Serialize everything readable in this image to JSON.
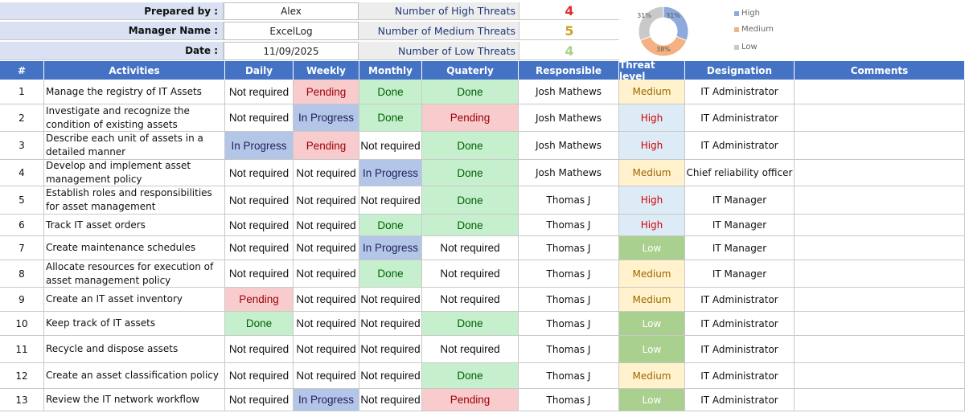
{
  "header": {
    "prepared_by_label": "Prepared by :",
    "prepared_by_value": "Alex",
    "manager_label": "Manager Name :",
    "manager_value": "ExcelLog",
    "date_label": "Date :",
    "date_value": "11/09/2025"
  },
  "threats_summary": {
    "high_label": "Number of High Threats",
    "high_count": "4",
    "medium_label": "Number of Medium Threats",
    "medium_count": "5",
    "low_label": "Number of Low Threats",
    "low_count": "4",
    "colors": {
      "high": "#e03030",
      "medium": "#c9a227",
      "low": "#a9d08e"
    }
  },
  "chart_data": {
    "type": "pie",
    "style": "doughnut",
    "categories": [
      "High",
      "Medium",
      "Low"
    ],
    "values": [
      31,
      38,
      31
    ],
    "value_labels": [
      "31%",
      "38%",
      "31%"
    ],
    "colors": [
      "#8ea9db",
      "#f4b183",
      "#c9c9c9"
    ],
    "legend": [
      "High",
      "Medium",
      "Low"
    ],
    "legend_position": "right"
  },
  "columns": [
    "#",
    "Activities",
    "Daily",
    "Weekly",
    "Monthly",
    "Quaterly",
    "Responsible",
    "Threat level",
    "Designation",
    "Comments"
  ],
  "rows": [
    {
      "num": "1",
      "activity": "Manage the registry of IT Assets",
      "daily": "Not required",
      "weekly": "Pending",
      "monthly": "Done",
      "quarterly": "Done",
      "responsible": "Josh Mathews",
      "threat": "Medium",
      "designation": "IT Administrator",
      "comments": ""
    },
    {
      "num": "2",
      "activity": "Investigate and recognize the condition of existing assets",
      "daily": "Not required",
      "weekly": "In Progress",
      "monthly": "Done",
      "quarterly": "Pending",
      "responsible": "Josh Mathews",
      "threat": "High",
      "designation": "IT Administrator",
      "comments": ""
    },
    {
      "num": "3",
      "activity": "Describe each unit of assets in a detailed manner",
      "daily": "In Progress",
      "weekly": "Pending",
      "monthly": "Not required",
      "quarterly": "Done",
      "responsible": "Josh Mathews",
      "threat": "High",
      "designation": "IT Administrator",
      "comments": ""
    },
    {
      "num": "4",
      "activity": "Develop and implement asset management policy",
      "daily": "Not required",
      "weekly": "Not required",
      "monthly": "In Progress",
      "quarterly": "Done",
      "responsible": "Josh Mathews",
      "threat": "Medium",
      "designation": "Chief reliability officer",
      "comments": ""
    },
    {
      "num": "5",
      "activity": "Establish roles and responsibilities for asset management",
      "daily": "Not required",
      "weekly": "Not required",
      "monthly": "Not required",
      "quarterly": "Done",
      "responsible": "Thomas J",
      "threat": "High",
      "designation": "IT Manager",
      "comments": ""
    },
    {
      "num": "6",
      "activity": "Track IT asset orders",
      "daily": "Not required",
      "weekly": "Not required",
      "monthly": "Done",
      "quarterly": "Done",
      "responsible": "Thomas J",
      "threat": "High",
      "designation": "IT Manager",
      "comments": ""
    },
    {
      "num": "7",
      "activity": "Create maintenance schedules",
      "daily": "Not required",
      "weekly": "Not required",
      "monthly": "In Progress",
      "quarterly": "Not required",
      "responsible": "Thomas J",
      "threat": "Low",
      "designation": "IT Manager",
      "comments": ""
    },
    {
      "num": "8",
      "activity": "Allocate resources for execution of asset management policy",
      "daily": "Not required",
      "weekly": "Not required",
      "monthly": "Done",
      "quarterly": "Not required",
      "responsible": "Thomas J",
      "threat": "Medium",
      "designation": "IT Manager",
      "comments": ""
    },
    {
      "num": "9",
      "activity": "Create an IT asset inventory",
      "daily": "Pending",
      "weekly": "Not required",
      "monthly": "Not required",
      "quarterly": "Not required",
      "responsible": "Thomas J",
      "threat": "Medium",
      "designation": "IT Administrator",
      "comments": ""
    },
    {
      "num": "10",
      "activity": "Keep track of IT assets",
      "daily": "Done",
      "weekly": "Not required",
      "monthly": "Not required",
      "quarterly": "Done",
      "responsible": "Thomas J",
      "threat": "Low",
      "designation": "IT Administrator",
      "comments": ""
    },
    {
      "num": "11",
      "activity": "Recycle and dispose assets",
      "daily": "Not required",
      "weekly": "Not required",
      "monthly": "Not required",
      "quarterly": "Not required",
      "responsible": "Thomas J",
      "threat": "Low",
      "designation": "IT Administrator",
      "comments": ""
    },
    {
      "num": "12",
      "activity": "Create an asset classification policy",
      "daily": "Not required",
      "weekly": "Not required",
      "monthly": "Not required",
      "quarterly": "Done",
      "responsible": "Thomas J",
      "threat": "Medium",
      "designation": "IT Administrator",
      "comments": ""
    },
    {
      "num": "13",
      "activity": "Review the IT network workflow",
      "daily": "Not required",
      "weekly": "In Progress",
      "monthly": "Not required",
      "quarterly": "Pending",
      "responsible": "Thomas J",
      "threat": "Low",
      "designation": "IT Administrator",
      "comments": ""
    }
  ]
}
